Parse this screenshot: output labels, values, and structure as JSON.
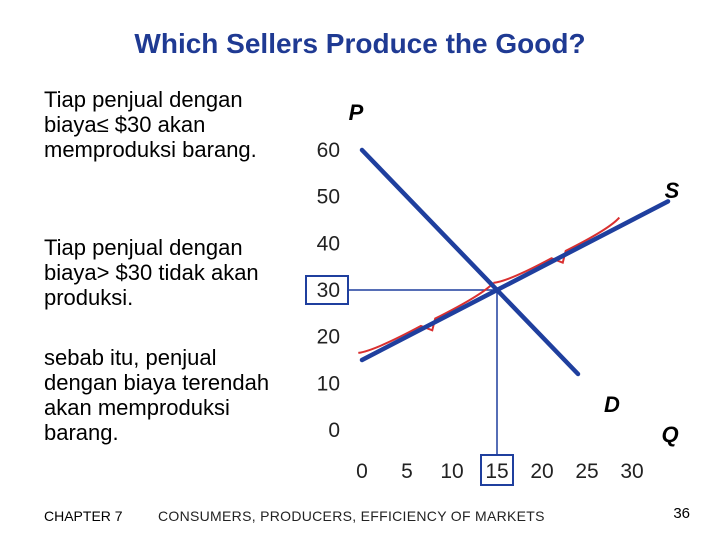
{
  "slide": {
    "title": "Which Sellers Produce the Good?",
    "text1": "Tiap penjual dengan biaya≤ $30 akan memproduksi barang.",
    "text2": "Tiap penjual dengan biaya> $30 tidak akan produksi.",
    "text3": "sebab itu, penjual dengan biaya terendah akan memproduksi barang.",
    "footer_chapter": "CHAPTER 7",
    "footer_title": "CONSUMERS, PRODUCERS, EFFICIENCY OF MARKETS",
    "page_number": "36"
  },
  "chart_data": {
    "type": "line",
    "xlabel": "Q",
    "ylabel": "P",
    "xlim": [
      0,
      30
    ],
    "ylim": [
      0,
      60
    ],
    "x_ticks": [
      "0",
      "5",
      "10",
      "15",
      "20",
      "25",
      "30"
    ],
    "y_ticks": [
      "0",
      "10",
      "20",
      "30",
      "40",
      "50",
      "60"
    ],
    "highlighted_x_tick": "15",
    "highlighted_y_tick": "30",
    "series": [
      {
        "name": "S",
        "points": [
          [
            0,
            15
          ],
          [
            15,
            30
          ],
          [
            34,
            49
          ]
        ]
      },
      {
        "name": "D",
        "points": [
          [
            0,
            60
          ],
          [
            15,
            30
          ],
          [
            24,
            12
          ]
        ]
      }
    ],
    "equilibrium": {
      "x": 15,
      "y": 30
    },
    "colors": {
      "curves": "#1f3f9e",
      "brace": "#d93030",
      "guide": "#1f3f9e"
    }
  }
}
